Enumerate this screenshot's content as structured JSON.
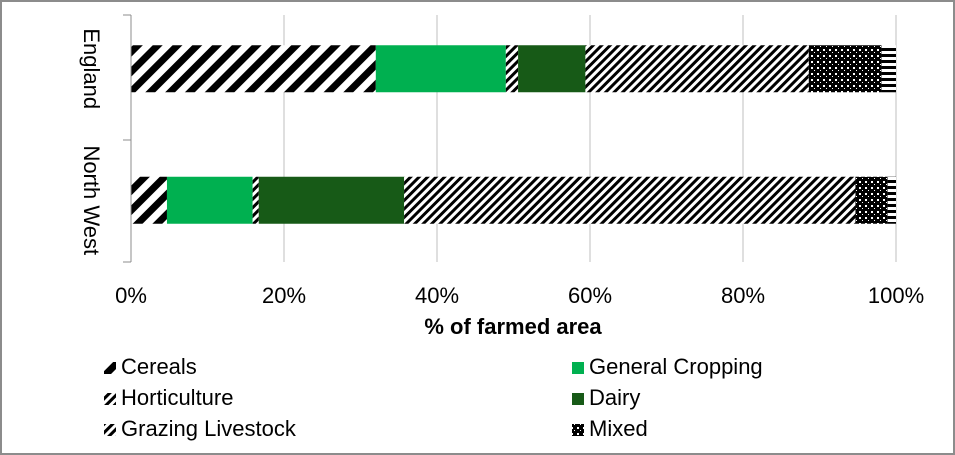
{
  "chart_data": {
    "type": "stacked-barh",
    "categories": [
      "England",
      "North West"
    ],
    "series": [
      {
        "name": "Cereals",
        "color": "#1e5c1e",
        "pattern": "wide-diagonal",
        "values": [
          32.0,
          4.7
        ]
      },
      {
        "name": "General Cropping",
        "color": "#00b050",
        "pattern": "solid",
        "values": [
          17.0,
          11.2
        ]
      },
      {
        "name": "Horticulture",
        "color": "#1e5c1e",
        "pattern": "fine-diagonal",
        "values": [
          1.6,
          0.8
        ]
      },
      {
        "name": "Dairy",
        "color": "#175a17",
        "pattern": "solid",
        "values": [
          8.8,
          19.0
        ]
      },
      {
        "name": "Grazing Livestock",
        "color": "#4bacc6",
        "pattern": "fine-diagonal",
        "values": [
          29.2,
          59.0
        ]
      },
      {
        "name": "Mixed",
        "color": "#1e5c1e",
        "pattern": "checker",
        "values": [
          9.5,
          4.2
        ]
      },
      {
        "color": "#00b050",
        "pattern": "horizontal",
        "values": [
          1.9,
          1.1
        ]
      }
    ],
    "xlabel": "% of farmed area",
    "xlim": [
      0,
      100
    ],
    "xticks": [
      {
        "value": 0,
        "label": "0%"
      },
      {
        "value": 20,
        "label": "20%"
      },
      {
        "value": 40,
        "label": "40%"
      },
      {
        "value": 60,
        "label": "60%"
      },
      {
        "value": 80,
        "label": "80%"
      },
      {
        "value": 100,
        "label": "100%"
      }
    ],
    "grid": true
  }
}
